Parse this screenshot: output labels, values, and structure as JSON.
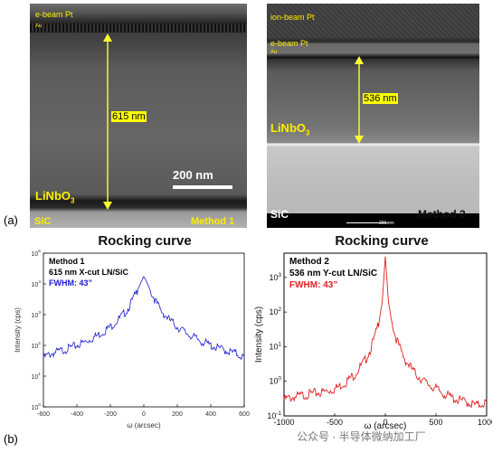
{
  "panel_a": {
    "label": "(a)",
    "method1": {
      "layer_top": "e-beam Pt",
      "layer_au": "Au",
      "thickness": "615 nm",
      "material": "LiNbO",
      "material_sub": "3",
      "substrate": "SiC",
      "method": "Method 1",
      "scalebar": "200 nm"
    },
    "method2": {
      "layer_ion": "ion-beam Pt",
      "layer_ebeam": "e-beam Pt",
      "layer_au": "Au",
      "thickness": "536 nm",
      "material": "LiNbO",
      "material_sub": "3",
      "substrate": "SiC",
      "method": "Method 2",
      "scalebar": "200 nm"
    },
    "colors": {
      "highlight": "#ffff00",
      "label_yellow": "#ffee00",
      "arrow": "#ffff33"
    }
  },
  "panel_b": {
    "label": "(b)",
    "chart_data": [
      {
        "type": "line",
        "title": "Rocking curve",
        "legend": [
          "Method 1",
          "615 nm X-cut LN/SiC",
          "FWHM: 43”"
        ],
        "xlabel": "ω (arcsec)",
        "ylabel": "Intensity (cps)",
        "xlim": [
          -600,
          600
        ],
        "ylim_log10": [
          0,
          5
        ],
        "log_y": true,
        "xticks": [
          "-600",
          "-400",
          "-200",
          "0",
          "200",
          "400",
          "600"
        ],
        "color": "#1a1acc",
        "series": [
          {
            "x": [
              -600,
              -550,
              -500,
              -450,
              -400,
              -350,
              -300,
              -250,
              -200,
              -150,
              -100,
              -75,
              -50,
              -30,
              -15,
              0,
              15,
              30,
              50,
              75,
              100,
              150,
              200,
              250,
              300,
              350,
              400,
              450,
              500,
              550,
              600
            ],
            "y": [
              40,
              55,
              65,
              80,
              100,
              130,
              180,
              260,
              400,
              700,
              1400,
              2500,
              4500,
              8000,
              12000,
              17000,
              12000,
              8000,
              4500,
              2500,
              1400,
              700,
              400,
              260,
              180,
              130,
              100,
              80,
              65,
              55,
              40
            ]
          }
        ]
      },
      {
        "type": "line",
        "title": "Rocking curve",
        "legend": [
          "Method 2",
          "536 nm Y-cut LN/SiC",
          "FWHM: 43”"
        ],
        "xlabel": "ω (arcsec)",
        "ylabel": "Intensity (cps)",
        "xlim": [
          -1000,
          1000
        ],
        "ylim_log10": [
          -1,
          3.7
        ],
        "log_y": true,
        "xticks": [
          "-1000",
          "-500",
          "0",
          "500",
          "1000"
        ],
        "color": "#e02020",
        "series": [
          {
            "x": [
              -1000,
              -900,
              -800,
              -700,
              -600,
              -500,
              -400,
              -300,
              -200,
              -150,
              -100,
              -60,
              -30,
              0,
              30,
              60,
              100,
              150,
              200,
              300,
              400,
              500,
              600,
              700,
              800,
              900,
              1000
            ],
            "y": [
              0.3,
              0.35,
              0.4,
              0.45,
              0.5,
              0.6,
              0.9,
              1.6,
              4,
              8,
              20,
              60,
              200,
              4000,
              200,
              60,
              20,
              8,
              4,
              1.6,
              0.9,
              0.6,
              0.4,
              0.3,
              0.25,
              0.2,
              0.25
            ]
          }
        ]
      }
    ]
  },
  "watermark": "公众号 · 半导体微纳加工厂"
}
